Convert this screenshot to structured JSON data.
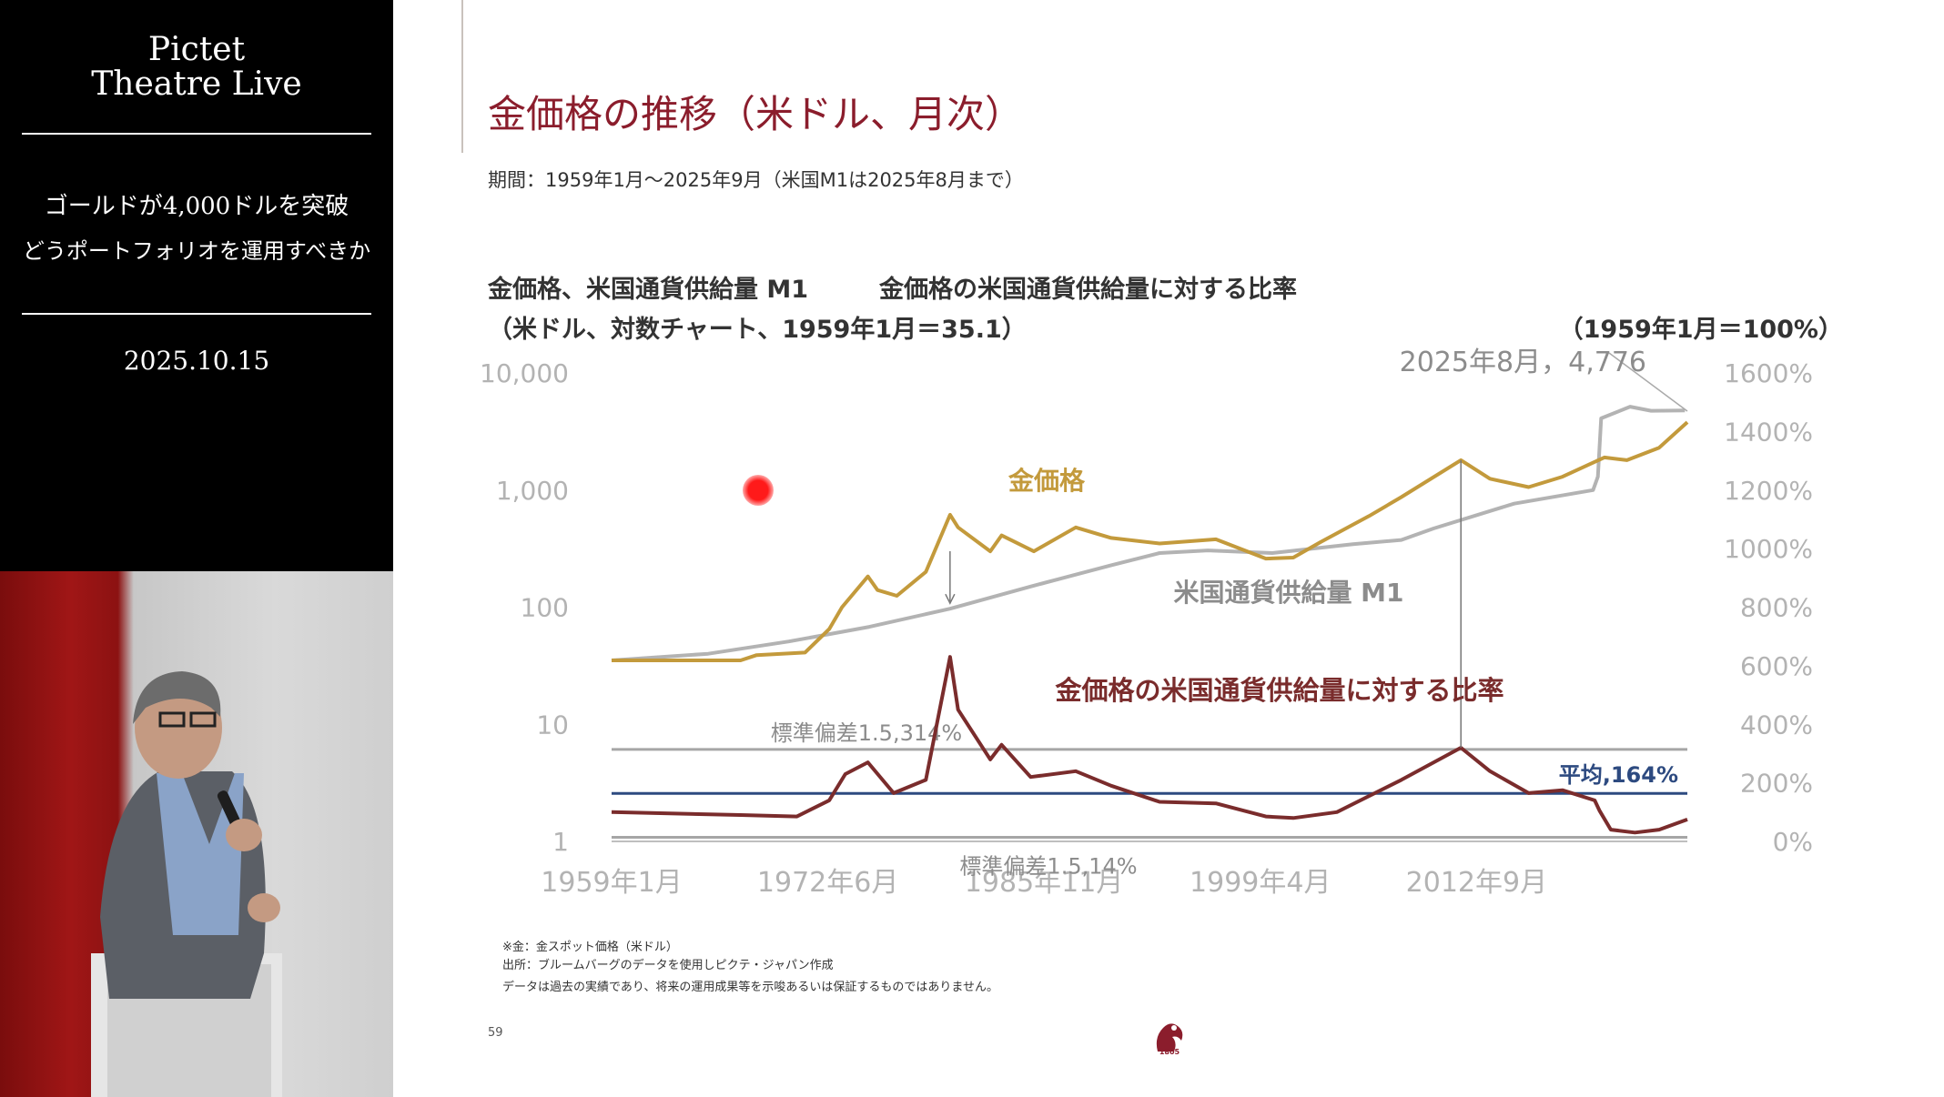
{
  "left_panel": {
    "brand_line1": "Pictet",
    "brand_line2": "Theatre Live",
    "topic_line1": "ゴールドが4,000ドルを突破",
    "topic_line2": "どうポートフォリオを運用すべきか",
    "date": "2025.10.15"
  },
  "slide": {
    "title": "金価格の推移（米ドル、月次）",
    "period": "期間：1959年1月～2025年9月（米国M1は2025年8月まで）",
    "left_axis_title_line1": "金価格、米国通貨供給量 M1",
    "left_axis_title_line2": "（米ドル、対数チャート、1959年1月＝35.1）",
    "right_axis_title_line1": "金価格の米国通貨供給量に対する比率",
    "right_axis_title_line2": "（1959年1月＝100%）",
    "footnotes": [
      "※金：金スポット価格（米ドル）",
      "出所：ブルームバーグのデータを使用しピクテ・ジャパン作成",
      "データは過去の実績であり、将来の運用成果等を示唆あるいは保証するものではありません。"
    ],
    "page_number": "59",
    "logo_year": "1805"
  },
  "colors": {
    "title_red": "#8b1d2c",
    "gold": "#c39a3c",
    "m1_gray": "#b3b3b3",
    "ratio_maroon": "#7a2c2c",
    "mean_blue": "#2d4a80",
    "sd_gray": "#a6a6a6"
  },
  "chart_data": {
    "type": "line",
    "x_ticks": [
      "1959年1月",
      "1972年6月",
      "1985年11月",
      "1999年4月",
      "2012年9月"
    ],
    "x_tick_years": [
      1959.0,
      1972.42,
      1985.83,
      1999.25,
      2012.67
    ],
    "xlim": [
      1959.0,
      2025.75
    ],
    "left_axis": {
      "scale": "log",
      "ylim": [
        1,
        10000
      ],
      "ticks": [
        1,
        10,
        100,
        1000,
        10000
      ],
      "tick_labels": [
        "1",
        "10",
        "100",
        "1,000",
        "10,000"
      ]
    },
    "right_axis": {
      "scale": "linear",
      "ylim": [
        0,
        1600
      ],
      "ticks": [
        0,
        200,
        400,
        600,
        800,
        1000,
        1200,
        1400,
        1600
      ],
      "tick_labels": [
        "0%",
        "200%",
        "400%",
        "600%",
        "800%",
        "1000%",
        "1200%",
        "1400%",
        "1600%"
      ]
    },
    "series": [
      {
        "name": "金価格",
        "axis": "left",
        "x": [
          1959.0,
          1967.0,
          1968.0,
          1971.0,
          1972.5,
          1973.3,
          1974.9,
          1975.5,
          1976.7,
          1978.5,
          1980.0,
          1980.5,
          1982.5,
          1983.2,
          1985.2,
          1987.8,
          1990,
          1993,
          1996.5,
          1999.6,
          2001.3,
          2003,
          2006,
          2008,
          2011.7,
          2013.5,
          2015.9,
          2018,
          2020.6,
          2022,
          2024,
          2025.75
        ],
        "y": [
          35.1,
          35.1,
          39,
          41,
          65,
          100,
          183,
          140,
          125,
          200,
          615,
          480,
          300,
          410,
          300,
          480,
          390,
          350,
          380,
          260,
          265,
          360,
          600,
          870,
          1800,
          1250,
          1060,
          1300,
          1900,
          1800,
          2300,
          3800
        ]
      },
      {
        "name": "米国通貨供給量 M1",
        "axis": "left",
        "x": [
          1959.0,
          1965,
          1970,
          1975,
          1980,
          1985,
          1990,
          1993,
          1996,
          2000,
          2005,
          2008,
          2010,
          2015,
          2019.9,
          2020.2,
          2020.4,
          2022.2,
          2023.5,
          2025.6
        ],
        "y": [
          35.1,
          40,
          51,
          68,
          97,
          150,
          228,
          290,
          305,
          290,
          345,
          375,
          470,
          765,
          1000,
          1300,
          4100,
          5150,
          4750,
          4776
        ]
      },
      {
        "name": "金価格の米国通貨供給量に対する比率",
        "axis": "right",
        "x": [
          1959.0,
          1967.0,
          1970.5,
          1972.5,
          1973.5,
          1974.9,
          1976.5,
          1978.5,
          1980.0,
          1980.5,
          1982.5,
          1983.2,
          1985.0,
          1987.8,
          1990,
          1993,
          1996.5,
          1999.6,
          2001.3,
          2004,
          2008,
          2011.7,
          2013.5,
          2015.9,
          2018,
          2020.0,
          2020.3,
          2021,
          2022.5,
          2024,
          2025.75
        ],
        "y": [
          100,
          90,
          85,
          140,
          230,
          270,
          165,
          210,
          630,
          450,
          280,
          330,
          220,
          240,
          190,
          135,
          130,
          85,
          80,
          100,
          210,
          320,
          240,
          165,
          175,
          140,
          105,
          40,
          30,
          40,
          75
        ]
      }
    ],
    "reference_lines": [
      {
        "label": "標準偏差1.5,314%",
        "value": 314,
        "axis": "right"
      },
      {
        "label": "平均,164%",
        "value": 164,
        "axis": "right"
      },
      {
        "label": "標準偏差1.5,14%",
        "value": 14,
        "axis": "right"
      }
    ],
    "annotations": {
      "gold_label": "金価格",
      "m1_label": "米国通貨供給量 M1",
      "ratio_label": "金価格の米国通貨供給量に対する比率",
      "callout": "2025年8月，4,776"
    }
  }
}
